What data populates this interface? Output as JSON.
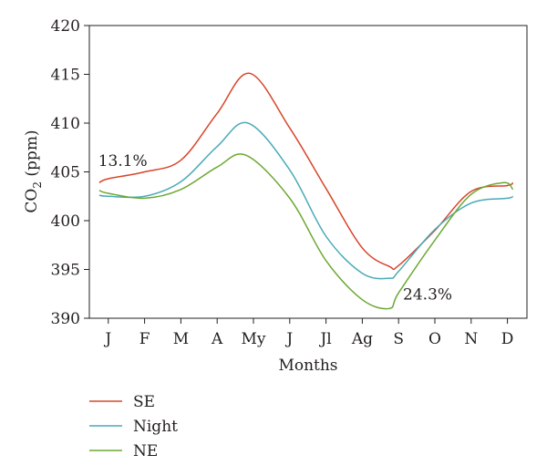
{
  "chart_data": {
    "type": "line",
    "title": "",
    "xlabel": "Months",
    "ylabel_main": "CO",
    "ylabel_sub": "2",
    "ylabel_unit": " (ppm)",
    "categories": [
      "J",
      "F",
      "M",
      "A",
      "My",
      "J",
      "Jl",
      "Ag",
      "S",
      "O",
      "N",
      "D"
    ],
    "ylim": [
      390,
      420
    ],
    "yticks": [
      390,
      395,
      400,
      405,
      410,
      415,
      420
    ],
    "grid": false,
    "legend_position": "bottom-left",
    "series": [
      {
        "name": "SE",
        "color": "#d6462a",
        "x": [
          0.75,
          1,
          2,
          3,
          4,
          4.9,
          6,
          7,
          8,
          8.75,
          9,
          10,
          11,
          12,
          12.15
        ],
        "values": [
          403.9,
          404.3,
          405.0,
          406.2,
          411.0,
          415.1,
          409.5,
          403.3,
          397.2,
          395.3,
          395.4,
          399.0,
          403.0,
          403.6,
          403.9
        ]
      },
      {
        "name": "Night",
        "color": "#4aaab7",
        "x": [
          0.75,
          1,
          2,
          3,
          4,
          4.85,
          6,
          7,
          8,
          8.75,
          9,
          10,
          11,
          12,
          12.15
        ],
        "values": [
          402.6,
          402.5,
          402.5,
          404.0,
          407.6,
          410.0,
          405.2,
          398.4,
          394.6,
          394.1,
          394.8,
          399.1,
          401.8,
          402.3,
          402.5
        ]
      },
      {
        "name": "NE",
        "color": "#6ca832",
        "x": [
          0.75,
          1,
          2,
          3,
          4,
          4.8,
          6,
          7,
          8,
          8.75,
          9,
          10,
          11,
          11.9,
          12.15
        ],
        "values": [
          403.1,
          402.8,
          402.3,
          403.2,
          405.5,
          406.7,
          402.3,
          395.9,
          391.9,
          391.0,
          392.6,
          398.0,
          402.7,
          403.9,
          403.2
        ]
      }
    ],
    "annotations": [
      {
        "text": "13.1%",
        "x": 1.4,
        "y": 405.6
      },
      {
        "text": "24.3%",
        "x": 9.8,
        "y": 391.9
      }
    ]
  }
}
